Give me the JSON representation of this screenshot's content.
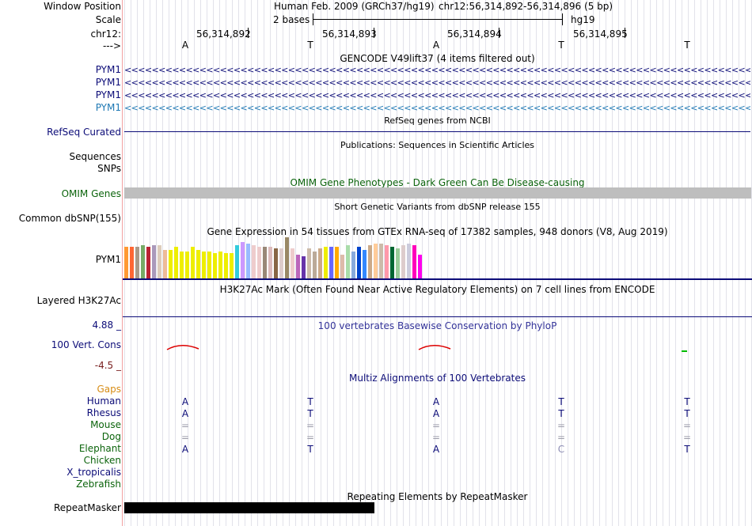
{
  "header": {
    "window_position_label": "Window Position",
    "assembly_text": "Human Feb. 2009 (GRCh37/hg19)",
    "position_text": "chr12:56,314,892-56,314,896 (5 bp)",
    "scale_label": "Scale",
    "scale_text": "2 bases",
    "scale_db": "hg19",
    "chrom_label": "chr12:",
    "coordinates": [
      "56,314,892",
      "56,314,893",
      "56,314,894",
      "56,314,895"
    ],
    "strand_label": "--->"
  },
  "sequence": [
    "A",
    "T",
    "A",
    "T",
    "T"
  ],
  "gencode": {
    "title": "GENCODE V49lift37 (4 items filtered out)",
    "items": [
      {
        "label": "PYM1",
        "color": "#0c0c78"
      },
      {
        "label": "PYM1",
        "color": "#0c0c78"
      },
      {
        "label": "PYM1",
        "color": "#0c0c78"
      },
      {
        "label": "PYM1",
        "color": "#1e78b4"
      }
    ],
    "arrow_glyph": "<"
  },
  "refseq": {
    "title": "RefSeq genes from NCBI",
    "label": "RefSeq Curated",
    "color": "#0c0c78"
  },
  "publications": {
    "title": "Publications: Sequences in Scientific Articles",
    "label_line1": "Sequences",
    "label_line2": "SNPs"
  },
  "omim": {
    "title": "OMIM Gene Phenotypes - Dark Green Can Be Disease-causing",
    "label": "OMIM Genes",
    "color": "#0c640c",
    "bar_color": "#bebebe"
  },
  "dbsnp": {
    "title": "Short Genetic Variants from dbSNP release 155",
    "label": "Common dbSNP(155)"
  },
  "gtex": {
    "title": "Gene Expression in 54 tissues from GTEx RNA-seq of 17382 samples, 948 donors (V8, Aug 2019)",
    "label": "PYM1",
    "chart_data": {
      "type": "bar",
      "title": "Gene Expression in 54 tissues from GTEx RNA-seq of 17382 samples, 948 donors (V8, Aug 2019)",
      "ymax": 52,
      "values": [
        40,
        40,
        40,
        42,
        40,
        42,
        42,
        36,
        36,
        40,
        34,
        34,
        40,
        36,
        34,
        34,
        32,
        34,
        32,
        32,
        42,
        46,
        44,
        42,
        40,
        40,
        40,
        38,
        38,
        52,
        38,
        30,
        28,
        38,
        34,
        38,
        40,
        40,
        40,
        30,
        42,
        34,
        40,
        36,
        42,
        44,
        44,
        42,
        40,
        38,
        42,
        44,
        42,
        30
      ],
      "colors": [
        "#ff9933",
        "#ff6633",
        "#aa9988",
        "#77aa66",
        "#bb2233",
        "#aa99bb",
        "#ddccbb",
        "#eebb99",
        "#eeee00",
        "#eeee00",
        "#eeee00",
        "#eeee00",
        "#eeee00",
        "#eeee00",
        "#eeee00",
        "#eeee00",
        "#eeee00",
        "#eeee00",
        "#eeee00",
        "#eeee00",
        "#33ccdd",
        "#cc99ff",
        "#99bbff",
        "#eecccc",
        "#eecccc",
        "#998877",
        "#ddbbbb",
        "#886644",
        "#ddcccc",
        "#998866",
        "#eecccc",
        "#bb66bb",
        "#6633aa",
        "#ccbbaa",
        "#bbaa99",
        "#ccaa88",
        "#eeee00",
        "#6666ff",
        "#ffaa00",
        "#ddbbaa",
        "#aaddaa",
        "#88aadd",
        "#0044cc",
        "#3388ff",
        "#ccaa88",
        "#ffcc99",
        "#ccbbaa",
        "#ff99aa",
        "#006633",
        "#99cc99",
        "#ddcccc",
        "#ccccdd",
        "#ff00bb",
        "#ff00ee"
      ]
    }
  },
  "h3k27ac": {
    "title": "H3K27Ac Mark (Often Found Near Active Regulatory Elements) on 7 cell lines from ENCODE",
    "label": "Layered H3K27Ac",
    "line_color": "#0c0c78"
  },
  "phylop": {
    "title": "100 vertebrates Basewise Conservation by PhyloP",
    "label": "100 Vert. Cons",
    "max_label": "4.88 _",
    "min_label": "-4.5 _",
    "max_color": "#0c0c78",
    "min_color": "#781e1e"
  },
  "multiz": {
    "title": "Multiz Alignments of 100 Vertebrates",
    "gaps_label": "Gaps",
    "gaps_color": "#d78c14",
    "species": [
      {
        "label": "Human",
        "color": "#0c0c78",
        "bases": [
          "A",
          "T",
          "A",
          "T",
          "T"
        ]
      },
      {
        "label": "Rhesus",
        "color": "#0c0c78",
        "bases": [
          "A",
          "T",
          "A",
          "T",
          "T"
        ]
      },
      {
        "label": "Mouse",
        "color": "#0c640c",
        "bases": [
          "=",
          "=",
          "=",
          "=",
          "="
        ]
      },
      {
        "label": "Dog",
        "color": "#0c640c",
        "bases": [
          "=",
          "=",
          "=",
          "=",
          "="
        ]
      },
      {
        "label": "Elephant",
        "color": "#0c640c",
        "bases": [
          "A",
          "T",
          "A",
          "C",
          "T"
        ]
      },
      {
        "label": "Chicken",
        "color": "#0c640c",
        "bases": []
      },
      {
        "label": "X_tropicalis",
        "color": "#0c0c78",
        "bases": []
      },
      {
        "label": "Zebrafish",
        "color": "#0c640c",
        "bases": []
      }
    ]
  },
  "repeatmasker": {
    "title": "Repeating Elements by RepeatMasker",
    "label": "RepeatMasker"
  }
}
